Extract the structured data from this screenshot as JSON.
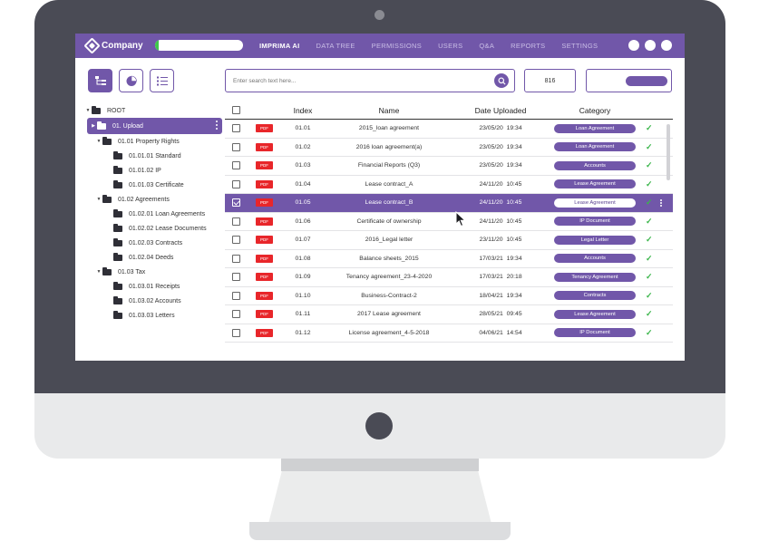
{
  "header": {
    "company": "Company",
    "upload_progress": 0.04,
    "nav": [
      "IMPRIMA AI",
      "DATA TREE",
      "PERMISSIONS",
      "USERS",
      "Q&A",
      "REPORTS",
      "SETTINGS"
    ],
    "active_nav": "IMPRIMA AI"
  },
  "toolbar": {
    "view_icons": [
      "tree-view-icon",
      "chart-view-icon",
      "list-view-icon"
    ],
    "search_placeholder": "Enter search text here...",
    "count": "816"
  },
  "tree": [
    {
      "label": "ROOT",
      "level": 0,
      "caret": "▼"
    },
    {
      "label": "01. Upload",
      "level": 0,
      "caret": "▶",
      "selected": true
    },
    {
      "label": "01.01 Property Rights",
      "level": 1,
      "caret": "▼"
    },
    {
      "label": "01.01.01 Standard",
      "level": 2,
      "caret": ""
    },
    {
      "label": "01.01.02 IP",
      "level": 2,
      "caret": ""
    },
    {
      "label": "01.01.03 Certificate",
      "level": 2,
      "caret": ""
    },
    {
      "label": "01.02 Agreements",
      "level": 1,
      "caret": "▼"
    },
    {
      "label": "01.02.01 Loan Agreements",
      "level": 2,
      "caret": ""
    },
    {
      "label": "01.02.02 Lease Documents",
      "level": 2,
      "caret": ""
    },
    {
      "label": "01.02.03 Contracts",
      "level": 2,
      "caret": ""
    },
    {
      "label": "01.02.04 Deeds",
      "level": 2,
      "caret": ""
    },
    {
      "label": "01.03 Tax",
      "level": 1,
      "caret": "▼"
    },
    {
      "label": "01.03.01 Receipts",
      "level": 2,
      "caret": ""
    },
    {
      "label": "01.03.02 Accounts",
      "level": 2,
      "caret": ""
    },
    {
      "label": "01.03.03 Letters",
      "level": 2,
      "caret": ""
    }
  ],
  "table": {
    "headers": {
      "index": "Index",
      "name": "Name",
      "date": "Date Uploaded",
      "category": "Category"
    },
    "type_label": "PDF",
    "rows": [
      {
        "index": "01.01",
        "name": "2015_loan agreement",
        "date": "23/05/20",
        "time": "19:34",
        "category": "Loan Agreement"
      },
      {
        "index": "01.02",
        "name": "2016 loan agreement(a)",
        "date": "23/05/20",
        "time": "19:34",
        "category": "Loan Agreement"
      },
      {
        "index": "01.03",
        "name": "Financial Reports (Q3)",
        "date": "23/05/20",
        "time": "19:34",
        "category": "Accounts"
      },
      {
        "index": "01.04",
        "name": "Lease contract_A",
        "date": "24/11/20",
        "time": "10:45",
        "category": "Lease Agreement"
      },
      {
        "index": "01.05",
        "name": "Lease contract_B",
        "date": "24/11/20",
        "time": "10:45",
        "category": "Lease Agreement",
        "selected": true
      },
      {
        "index": "01.06",
        "name": "Certificate of ownership",
        "date": "24/11/20",
        "time": "10:45",
        "category": "IP Document"
      },
      {
        "index": "01.07",
        "name": "2016_Legal letter",
        "date": "23/11/20",
        "time": "10:45",
        "category": "Legal Letter"
      },
      {
        "index": "01.08",
        "name": "Balance sheets_2015",
        "date": "17/03/21",
        "time": "19:34",
        "category": "Accounts"
      },
      {
        "index": "01.09",
        "name": "Tenancy agreement_23-4-2020",
        "date": "17/03/21",
        "time": "20:18",
        "category": "Tenancy Agreement"
      },
      {
        "index": "01.10",
        "name": "Business-Contract-2",
        "date": "18/04/21",
        "time": "19:34",
        "category": "Contracts"
      },
      {
        "index": "01.11",
        "name": "2017 Lease agreement",
        "date": "28/05/21",
        "time": "09:45",
        "category": "Lease Agreement"
      },
      {
        "index": "01.12",
        "name": "License agreement_4-5-2018",
        "date": "04/06/21",
        "time": "14:54",
        "category": "IP Document"
      }
    ]
  },
  "colors": {
    "accent": "#7157a9",
    "pdf": "#e8262a",
    "ok": "#3ab54a",
    "bezel": "#4a4b55"
  }
}
